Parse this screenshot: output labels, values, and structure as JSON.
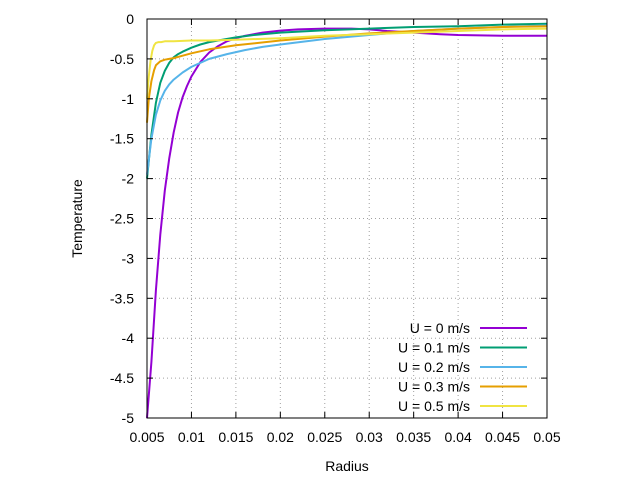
{
  "chart_data": {
    "type": "line",
    "title": "",
    "xlabel": "Radius",
    "ylabel": "Temperature",
    "xlim": [
      0.005,
      0.05
    ],
    "ylim": [
      -5,
      0
    ],
    "xticks": [
      0.005,
      0.01,
      0.015,
      0.02,
      0.025,
      0.03,
      0.035,
      0.04,
      0.045,
      0.05
    ],
    "xtick_labels": [
      "0.005",
      "0.01",
      "0.015",
      "0.02",
      "0.025",
      "0.03",
      "0.035",
      "0.04",
      "0.045",
      "0.05"
    ],
    "yticks": [
      0,
      -0.5,
      -1,
      -1.5,
      -2,
      -2.5,
      -3,
      -3.5,
      -4,
      -4.5,
      -5
    ],
    "ytick_labels": [
      "0",
      "-0.5",
      "-1",
      "-1.5",
      "-2",
      "-2.5",
      "-3",
      "-3.5",
      "-4",
      "-4.5",
      "-5"
    ],
    "grid": true,
    "legend_position": "bottom-right",
    "series": [
      {
        "name": "U = 0 m/s",
        "color": "#9400d3",
        "x": [
          0.005,
          0.0055,
          0.006,
          0.0065,
          0.007,
          0.0075,
          0.008,
          0.0085,
          0.009,
          0.0095,
          0.01,
          0.011,
          0.012,
          0.013,
          0.014,
          0.015,
          0.016,
          0.018,
          0.02,
          0.022,
          0.025,
          0.028,
          0.03,
          0.032,
          0.035,
          0.038,
          0.04,
          0.045,
          0.05
        ],
        "y": [
          -5.0,
          -4.3,
          -3.4,
          -2.7,
          -2.15,
          -1.75,
          -1.42,
          -1.17,
          -0.98,
          -0.84,
          -0.72,
          -0.54,
          -0.42,
          -0.34,
          -0.28,
          -0.24,
          -0.21,
          -0.17,
          -0.145,
          -0.13,
          -0.12,
          -0.12,
          -0.13,
          -0.15,
          -0.17,
          -0.19,
          -0.2,
          -0.21,
          -0.21
        ]
      },
      {
        "name": "U = 0.1 m/s",
        "color": "#009e73",
        "x": [
          0.005,
          0.0055,
          0.006,
          0.0065,
          0.007,
          0.0075,
          0.008,
          0.0085,
          0.009,
          0.01,
          0.011,
          0.012,
          0.013,
          0.015,
          0.017,
          0.02,
          0.025,
          0.03,
          0.035,
          0.04,
          0.045,
          0.05
        ],
        "y": [
          -2.0,
          -1.45,
          -1.05,
          -0.8,
          -0.65,
          -0.55,
          -0.48,
          -0.44,
          -0.41,
          -0.36,
          -0.32,
          -0.29,
          -0.27,
          -0.23,
          -0.2,
          -0.17,
          -0.14,
          -0.12,
          -0.1,
          -0.09,
          -0.07,
          -0.06
        ]
      },
      {
        "name": "U = 0.2 m/s",
        "color": "#56b4e9",
        "x": [
          0.005,
          0.0055,
          0.006,
          0.0065,
          0.007,
          0.0075,
          0.008,
          0.009,
          0.01,
          0.011,
          0.012,
          0.014,
          0.016,
          0.018,
          0.02,
          0.025,
          0.03,
          0.035,
          0.04,
          0.045,
          0.05
        ],
        "y": [
          -1.95,
          -1.5,
          -1.2,
          -1.02,
          -0.9,
          -0.82,
          -0.76,
          -0.67,
          -0.6,
          -0.55,
          -0.5,
          -0.44,
          -0.39,
          -0.35,
          -0.32,
          -0.25,
          -0.2,
          -0.15,
          -0.12,
          -0.1,
          -0.08
        ]
      },
      {
        "name": "U = 0.3 m/s",
        "color": "#e69f00",
        "x": [
          0.005,
          0.0052,
          0.0055,
          0.0058,
          0.006,
          0.0065,
          0.007,
          0.0075,
          0.008,
          0.009,
          0.01,
          0.012,
          0.015,
          0.02,
          0.025,
          0.03,
          0.035,
          0.04,
          0.045,
          0.05
        ],
        "y": [
          -1.3,
          -1.0,
          -0.78,
          -0.64,
          -0.58,
          -0.53,
          -0.51,
          -0.5,
          -0.49,
          -0.46,
          -0.43,
          -0.38,
          -0.33,
          -0.27,
          -0.22,
          -0.18,
          -0.15,
          -0.12,
          -0.1,
          -0.09
        ]
      },
      {
        "name": "U = 0.5 m/s",
        "color": "#f0e442",
        "x": [
          0.005,
          0.0052,
          0.0054,
          0.0056,
          0.0058,
          0.006,
          0.0063,
          0.0066,
          0.007,
          0.008,
          0.01,
          0.012,
          0.015,
          0.02,
          0.025,
          0.03,
          0.035,
          0.04,
          0.045,
          0.05
        ],
        "y": [
          -1.0,
          -0.72,
          -0.52,
          -0.4,
          -0.33,
          -0.3,
          -0.29,
          -0.29,
          -0.28,
          -0.28,
          -0.27,
          -0.27,
          -0.26,
          -0.24,
          -0.21,
          -0.19,
          -0.17,
          -0.15,
          -0.13,
          -0.12
        ]
      }
    ]
  }
}
